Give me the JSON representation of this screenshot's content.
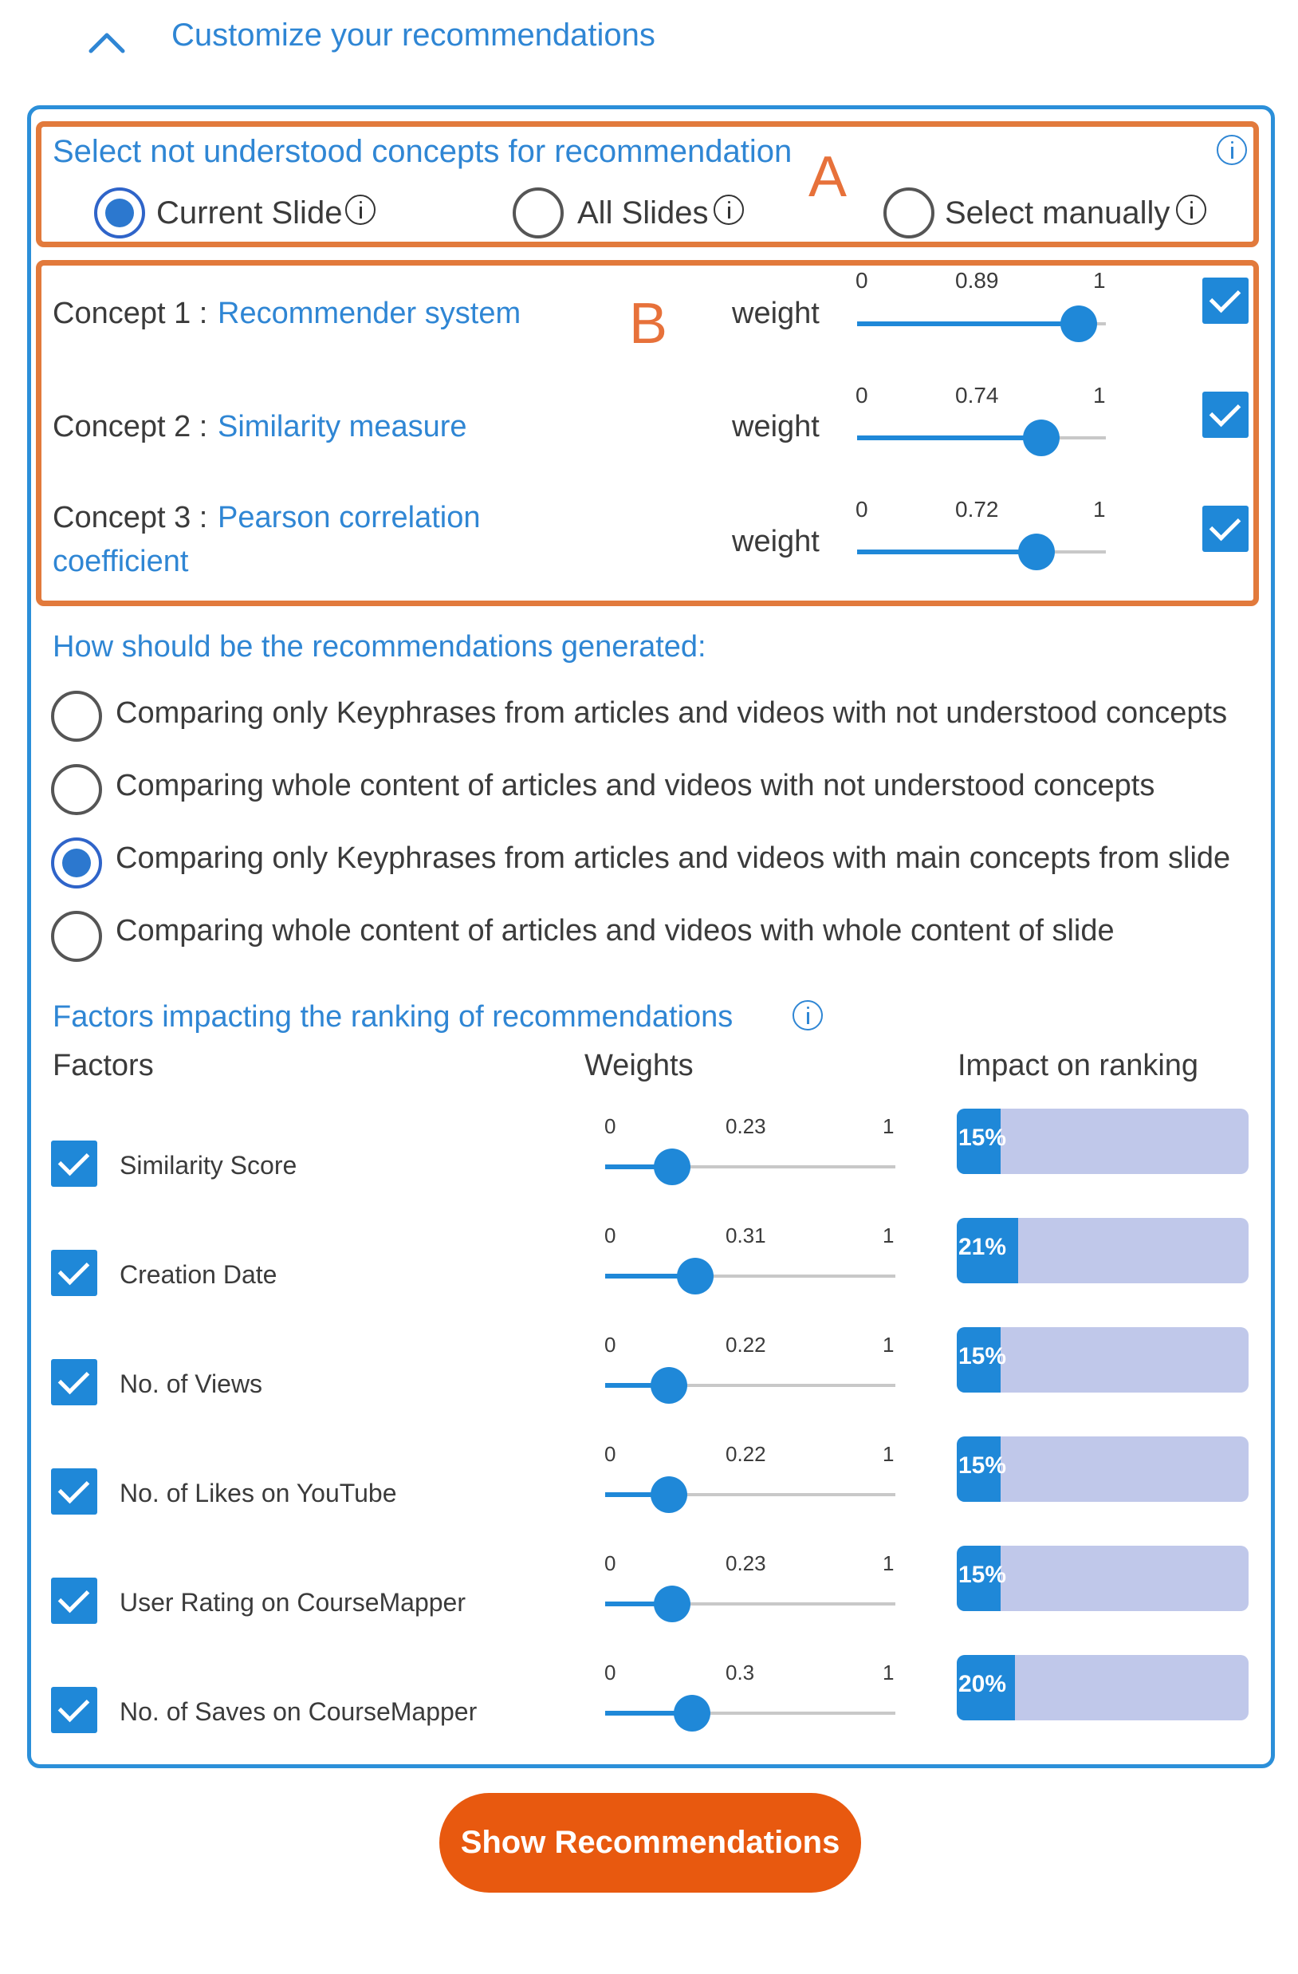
{
  "header": {
    "title": "Customize your recommendations",
    "toggle_icon": "chevron-up-icon"
  },
  "concept_selection": {
    "title": "Select not understood concepts for recommendation",
    "annotation": "A",
    "options": [
      {
        "label": "Current Slide",
        "selected": true
      },
      {
        "label": "All Slides",
        "selected": false
      },
      {
        "label": "Select manually",
        "selected": false
      }
    ]
  },
  "concepts": {
    "annotation": "B",
    "weight_label": "weight",
    "slider_min": "0",
    "slider_max": "1",
    "items": [
      {
        "prefix": "Concept 1 : ",
        "name": "Recommender system",
        "name_line2": "",
        "weight": 0.89,
        "weight_label": "0.89",
        "checked": true
      },
      {
        "prefix": "Concept 2 : ",
        "name": "Similarity measure",
        "name_line2": "",
        "weight": 0.74,
        "weight_label": "0.74",
        "checked": true
      },
      {
        "prefix": "Concept 3 : ",
        "name": "Pearson correlation",
        "name_line2": "coefficient",
        "weight": 0.72,
        "weight_label": "0.72",
        "checked": true
      }
    ]
  },
  "generation": {
    "title": "How should be the recommendations generated:",
    "options": [
      {
        "label": "Comparing only Keyphrases from articles and videos with not understood concepts",
        "selected": false
      },
      {
        "label": "Comparing whole content of articles and videos with not understood concepts",
        "selected": false
      },
      {
        "label": "Comparing only Keyphrases from articles and videos with main concepts from slide",
        "selected": true
      },
      {
        "label": "Comparing whole content of articles and videos with whole content of slide",
        "selected": false
      }
    ]
  },
  "factors": {
    "title": "Factors impacting the ranking of recommendations",
    "col_factors": "Factors",
    "col_weights": "Weights",
    "col_impact": "Impact on ranking",
    "slider_min": "0",
    "slider_max": "1",
    "items": [
      {
        "name": "Similarity Score",
        "weight": 0.23,
        "weight_label": "0.23",
        "impact": 0.15,
        "impact_label": "15%",
        "checked": true
      },
      {
        "name": "Creation Date",
        "weight": 0.31,
        "weight_label": "0.31",
        "impact": 0.21,
        "impact_label": "21%",
        "checked": true
      },
      {
        "name": "No. of Views",
        "weight": 0.22,
        "weight_label": "0.22",
        "impact": 0.15,
        "impact_label": "15%",
        "checked": true
      },
      {
        "name": "No. of Likes on YouTube",
        "weight": 0.22,
        "weight_label": "0.22",
        "impact": 0.15,
        "impact_label": "15%",
        "checked": true
      },
      {
        "name": "User Rating on CourseMapper",
        "weight": 0.23,
        "weight_label": "0.23",
        "impact": 0.15,
        "impact_label": "15%",
        "checked": true
      },
      {
        "name": "No. of Saves on CourseMapper",
        "weight": 0.3,
        "weight_label": "0.3",
        "impact": 0.2,
        "impact_label": "20%",
        "checked": true
      }
    ]
  },
  "action": {
    "label": "Show Recommendations"
  },
  "colors": {
    "accent": "#1f88d8",
    "link": "#2f86d4",
    "annotation": "#e27a3c",
    "button": "#e8590f",
    "impact_bg": "#c0c8ea"
  }
}
